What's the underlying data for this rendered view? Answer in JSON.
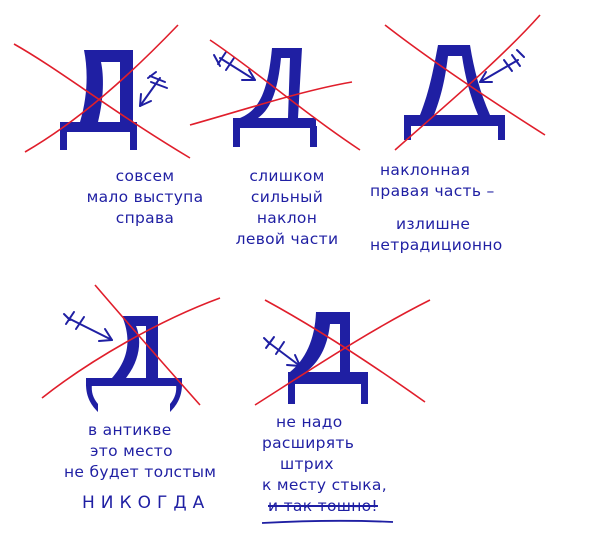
{
  "colors": {
    "ink": "#1f1fa3",
    "cross": "#e01e2b",
    "paper": "#ffffff"
  },
  "letter": "Д",
  "items": [
    {
      "lines": [
        "совсем",
        "мало выступа",
        "справа"
      ]
    },
    {
      "lines": [
        "слишком",
        "сильный",
        "наклон",
        "левой части"
      ]
    },
    {
      "lines": [
        "наклонная",
        "правая часть –",
        "излишне",
        "нетрадиционно"
      ]
    },
    {
      "lines": [
        "в антикве",
        "это место",
        "не будет толстым",
        "НИКОГДА"
      ]
    },
    {
      "lines": [
        "не надо",
        "расширять",
        "штрих",
        "к месту стыка,",
        "и так тошно!"
      ]
    }
  ]
}
